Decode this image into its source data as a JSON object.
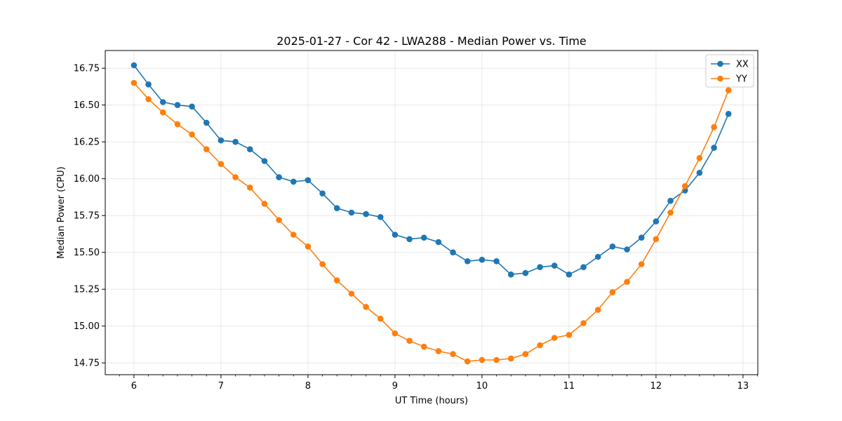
{
  "chart_data": {
    "type": "line",
    "title": "2025-01-27 - Cor 42 - LWA288 - Median Power vs. Time",
    "xlabel": "UT Time (hours)",
    "ylabel": "Median Power (CPU)",
    "xlim": [
      5.67,
      13.17
    ],
    "ylim": [
      14.67,
      16.87
    ],
    "xticks": [
      6,
      7,
      8,
      9,
      10,
      11,
      12,
      13
    ],
    "xtick_labels": [
      "6",
      "7",
      "8",
      "9",
      "10",
      "11",
      "12",
      "13"
    ],
    "yticks": [
      14.75,
      15.0,
      15.25,
      15.5,
      15.75,
      16.0,
      16.25,
      16.5,
      16.75
    ],
    "ytick_labels": [
      "14.75",
      "15.00",
      "15.25",
      "15.50",
      "15.75",
      "16.00",
      "16.25",
      "16.50",
      "16.75"
    ],
    "grid": true,
    "legend_position": "top-right",
    "x": [
      6.0,
      6.1667,
      6.3333,
      6.5,
      6.6667,
      6.8333,
      7.0,
      7.1667,
      7.3333,
      7.5,
      7.6667,
      7.8333,
      8.0,
      8.1667,
      8.3333,
      8.5,
      8.6667,
      8.8333,
      9.0,
      9.1667,
      9.3333,
      9.5,
      9.6667,
      9.8333,
      10.0,
      10.1667,
      10.3333,
      10.5,
      10.6667,
      10.8333,
      11.0,
      11.1667,
      11.3333,
      11.5,
      11.6667,
      11.8333,
      12.0,
      12.1667,
      12.3333,
      12.5,
      12.6667,
      12.8333
    ],
    "series": [
      {
        "name": "XX",
        "color": "#1f77b4",
        "values": [
          16.77,
          16.64,
          16.52,
          16.5,
          16.49,
          16.38,
          16.26,
          16.25,
          16.2,
          16.12,
          16.01,
          15.98,
          15.99,
          15.9,
          15.8,
          15.77,
          15.76,
          15.74,
          15.62,
          15.59,
          15.6,
          15.57,
          15.5,
          15.44,
          15.45,
          15.44,
          15.35,
          15.36,
          15.4,
          15.41,
          15.35,
          15.4,
          15.47,
          15.54,
          15.52,
          15.6,
          15.71,
          15.85,
          15.92,
          16.04,
          16.21,
          16.44
        ]
      },
      {
        "name": "YY",
        "color": "#ff7f0e",
        "values": [
          16.65,
          16.54,
          16.45,
          16.37,
          16.3,
          16.2,
          16.1,
          16.01,
          15.94,
          15.83,
          15.72,
          15.62,
          15.54,
          15.42,
          15.31,
          15.22,
          15.13,
          15.05,
          14.95,
          14.9,
          14.86,
          14.83,
          14.81,
          14.76,
          14.77,
          14.77,
          14.78,
          14.81,
          14.87,
          14.92,
          14.94,
          15.02,
          15.11,
          15.23,
          15.3,
          15.42,
          15.59,
          15.77,
          15.95,
          16.14,
          16.35,
          16.6
        ]
      }
    ]
  }
}
